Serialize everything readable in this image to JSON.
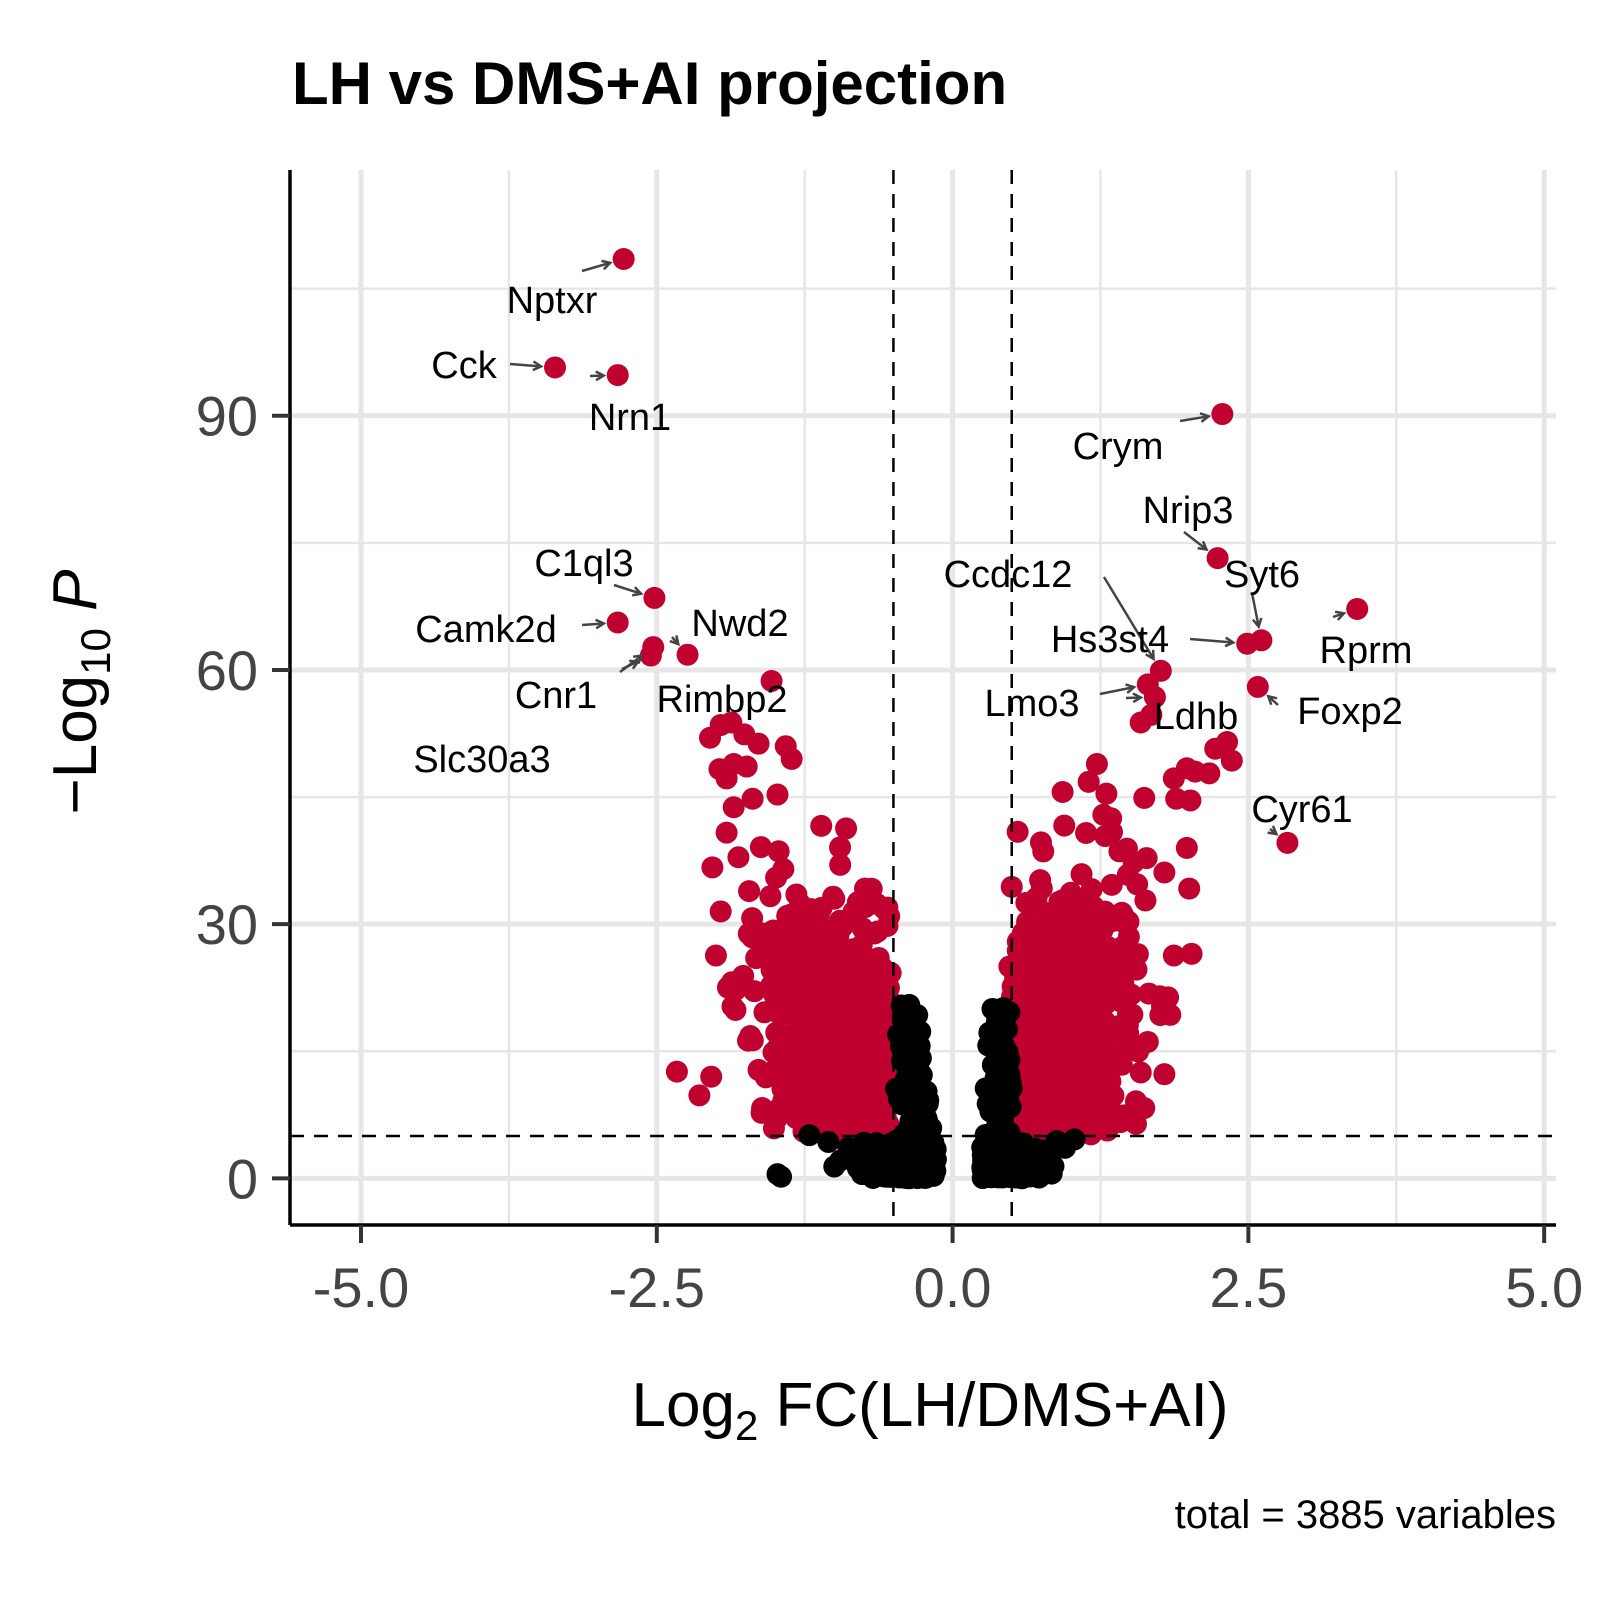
{
  "chart_data": {
    "type": "scatter",
    "title": "LH vs DMS+AI projection",
    "xlabel": {
      "prefix": "Log",
      "sub": "2",
      "suffix": " FC(LH/DMS+AI)"
    },
    "ylabel": {
      "prefix": "−Log",
      "sub": "10",
      "suffix": " P"
    },
    "caption": "total = 3885 variables",
    "xlim": [
      -5.6,
      5.1
    ],
    "ylim": [
      -5.5,
      119
    ],
    "xticks": [
      -5.0,
      -2.5,
      0.0,
      2.5,
      5.0
    ],
    "xtick_labels": [
      "-5.0",
      "-2.5",
      "0.0",
      "2.5",
      "5.0"
    ],
    "yticks": [
      0,
      30,
      60,
      90
    ],
    "ytick_labels": [
      "0",
      "30",
      "60",
      "90"
    ],
    "fc_cutoff": 0.5,
    "p_cutoff": 5,
    "grid": true,
    "legend": "none",
    "colors": {
      "significant": "#c0002e",
      "not_significant": "#000000",
      "grid": "#e6e6e6",
      "connector": "#444444"
    },
    "labeled_genes": [
      {
        "name": "Nptxr",
        "x": -2.78,
        "y": 108.5
      },
      {
        "name": "Cck",
        "x": -3.36,
        "y": 95.7
      },
      {
        "name": "Nrn1",
        "x": -2.83,
        "y": 94.8
      },
      {
        "name": "Crym",
        "x": 2.28,
        "y": 90.2
      },
      {
        "name": "Nrip3",
        "x": 2.24,
        "y": 73.2
      },
      {
        "name": "Syt6",
        "x": 2.61,
        "y": 63.5
      },
      {
        "name": "Rprm",
        "x": 3.42,
        "y": 67.2
      },
      {
        "name": "Ccdc12",
        "x": 1.76,
        "y": 59.9
      },
      {
        "name": "Hs3st4",
        "x": 2.49,
        "y": 63.1
      },
      {
        "name": "Lmo3",
        "x": 1.65,
        "y": 58.3
      },
      {
        "name": "Ldhb",
        "x": 1.71,
        "y": 56.8
      },
      {
        "name": "Foxp2",
        "x": 2.58,
        "y": 58.0
      },
      {
        "name": "Cyr61",
        "x": 2.83,
        "y": 39.6
      },
      {
        "name": "C1ql3",
        "x": -2.52,
        "y": 68.5
      },
      {
        "name": "Camk2d",
        "x": -2.83,
        "y": 65.6
      },
      {
        "name": "Nwd2",
        "x": -2.24,
        "y": 61.8
      },
      {
        "name": "Cnr1",
        "x": -2.53,
        "y": 62.7
      },
      {
        "name": "Slc30a3",
        "x": -2.55,
        "y": 61.7
      },
      {
        "name": "Rimbp2",
        "x": -1.53,
        "y": 58.7
      }
    ],
    "significant_points": [
      [
        -1.96,
        53.5
      ],
      [
        -2.05,
        52.0
      ],
      [
        -1.87,
        53.8
      ],
      [
        -1.76,
        52.4
      ],
      [
        -1.64,
        51.3
      ],
      [
        -1.41,
        51.0
      ],
      [
        -1.36,
        49.5
      ],
      [
        -1.97,
        48.3
      ],
      [
        -1.91,
        47.2
      ],
      [
        -1.85,
        48.9
      ],
      [
        -1.74,
        48.6
      ],
      [
        -1.48,
        45.3
      ],
      [
        -1.85,
        43.8
      ],
      [
        -1.69,
        44.8
      ],
      [
        -1.91,
        40.8
      ],
      [
        -2.03,
        36.7
      ],
      [
        -1.81,
        37.9
      ],
      [
        -1.62,
        39.1
      ],
      [
        -1.47,
        38.6
      ],
      [
        -1.43,
        36.5
      ],
      [
        -1.72,
        33.9
      ],
      [
        -1.54,
        33.3
      ],
      [
        -1.32,
        33.5
      ],
      [
        -1.11,
        41.6
      ],
      [
        -0.9,
        41.3
      ],
      [
        -0.95,
        37.0
      ],
      [
        -0.74,
        34.2
      ],
      [
        -0.8,
        32.6
      ],
      [
        -1.0,
        33.0
      ],
      [
        -0.55,
        29.8
      ],
      [
        -0.66,
        28.9
      ],
      [
        -0.76,
        29.5
      ],
      [
        -0.93,
        25.6
      ],
      [
        -1.96,
        31.5
      ],
      [
        -2.0,
        26.3
      ],
      [
        -1.66,
        26.0
      ],
      [
        -1.77,
        23.9
      ],
      [
        -1.53,
        24.6
      ],
      [
        -1.36,
        26.7
      ],
      [
        -1.23,
        25.2
      ],
      [
        -1.12,
        23.6
      ],
      [
        -1.86,
        20.3
      ],
      [
        -1.59,
        19.6
      ],
      [
        -1.71,
        16.8
      ],
      [
        -1.49,
        17.2
      ],
      [
        -1.33,
        19.4
      ],
      [
        -2.33,
        12.6
      ],
      [
        -2.14,
        9.8
      ],
      [
        -2.04,
        12.0
      ],
      [
        -1.64,
        12.8
      ],
      [
        -1.61,
        8.3
      ],
      [
        -1.51,
        5.9
      ],
      [
        -1.32,
        7.1
      ],
      [
        -1.21,
        5.4
      ],
      [
        -1.04,
        6.5
      ],
      [
        -0.89,
        5.8
      ],
      [
        1.15,
        46.8
      ],
      [
        1.22,
        48.9
      ],
      [
        1.3,
        45.4
      ],
      [
        1.34,
        42.5
      ],
      [
        1.29,
        40.4
      ],
      [
        1.41,
        38.6
      ],
      [
        1.53,
        37.3
      ],
      [
        1.64,
        37.8
      ],
      [
        1.79,
        36.1
      ],
      [
        1.98,
        39.0
      ],
      [
        2.0,
        34.2
      ],
      [
        1.89,
        44.8
      ],
      [
        2.01,
        44.6
      ],
      [
        1.87,
        47.2
      ],
      [
        1.98,
        48.4
      ],
      [
        2.05,
        48.0
      ],
      [
        2.17,
        47.8
      ],
      [
        2.22,
        50.7
      ],
      [
        2.32,
        51.5
      ],
      [
        2.36,
        49.3
      ],
      [
        1.62,
        44.9
      ],
      [
        1.68,
        54.7
      ],
      [
        1.59,
        53.8
      ],
      [
        0.93,
        45.6
      ],
      [
        1.09,
        35.9
      ],
      [
        0.55,
        40.9
      ],
      [
        0.74,
        35.2
      ],
      [
        0.5,
        34.4
      ],
      [
        0.71,
        33.1
      ],
      [
        0.91,
        29.8
      ],
      [
        1.27,
        29.4
      ],
      [
        1.49,
        28.5
      ],
      [
        1.63,
        32.8
      ],
      [
        1.56,
        34.7
      ],
      [
        1.45,
        30.2
      ],
      [
        1.51,
        21.7
      ],
      [
        1.42,
        20.9
      ],
      [
        1.65,
        16.1
      ],
      [
        1.75,
        21.5
      ],
      [
        1.87,
        26.3
      ],
      [
        1.77,
        20.3
      ],
      [
        2.02,
        26.5
      ],
      [
        1.84,
        19.3
      ],
      [
        1.79,
        12.3
      ],
      [
        1.55,
        9.1
      ],
      [
        1.62,
        8.3
      ],
      [
        0.48,
        25.0
      ],
      [
        0.55,
        22.6
      ],
      [
        1.17,
        5.2
      ],
      [
        0.86,
        8.6
      ],
      [
        1.07,
        7.9
      ],
      [
        0.63,
        10.5
      ],
      [
        0.73,
        12.2
      ],
      [
        0.68,
        14.6
      ],
      [
        0.59,
        17.2
      ]
    ],
    "nonsignificant_points": [
      [
        -1.45,
        0.2
      ],
      [
        -1.48,
        0.5
      ],
      [
        -1.21,
        5.1
      ],
      [
        -1.05,
        4.3
      ],
      [
        -0.95,
        2.1
      ],
      [
        -0.88,
        3.6
      ],
      [
        -0.8,
        1.2
      ],
      [
        -0.75,
        4.2
      ],
      [
        -0.7,
        0.4
      ],
      [
        -0.66,
        2.8
      ],
      [
        -0.61,
        3.9
      ],
      [
        -0.56,
        1.7
      ],
      [
        -0.52,
        0.6
      ],
      [
        -0.48,
        4.4
      ],
      [
        -0.45,
        2.2
      ],
      [
        -0.42,
        14.9
      ],
      [
        -0.4,
        13.6
      ],
      [
        -0.38,
        9.8
      ],
      [
        -0.36,
        6.4
      ],
      [
        -0.34,
        3.1
      ],
      [
        -0.31,
        0.9
      ],
      [
        -0.29,
        11.6
      ],
      [
        -0.27,
        7.7
      ],
      [
        -0.25,
        4.6
      ],
      [
        -0.23,
        1.8
      ],
      [
        -0.21,
        8.8
      ],
      [
        -0.19,
        5.6
      ],
      [
        -0.17,
        2.4
      ],
      [
        -0.16,
        0.3
      ],
      [
        -0.43,
        20.4
      ],
      [
        -0.46,
        17.0
      ],
      [
        -0.26,
        12.2
      ],
      [
        -0.37,
        0.1
      ],
      [
        -0.3,
        6.1
      ],
      [
        -0.22,
        3.3
      ],
      [
        -0.55,
        0.2
      ],
      [
        -0.63,
        0.9
      ],
      [
        -0.72,
        2.6
      ],
      [
        -0.83,
        3.4
      ],
      [
        -1.0,
        1.4
      ],
      [
        -0.49,
        2.9
      ],
      [
        -0.41,
        5.2
      ],
      [
        -0.33,
        9.1
      ],
      [
        -0.28,
        0.6
      ],
      [
        -0.2,
        1.1
      ],
      [
        0.26,
        0.3
      ],
      [
        0.28,
        2.5
      ],
      [
        0.3,
        5.1
      ],
      [
        0.32,
        7.9
      ],
      [
        0.34,
        10.5
      ],
      [
        0.36,
        1.3
      ],
      [
        0.38,
        3.8
      ],
      [
        0.4,
        12.6
      ],
      [
        0.42,
        6.7
      ],
      [
        0.44,
        14.3
      ],
      [
        0.46,
        17.6
      ],
      [
        0.48,
        19.6
      ],
      [
        0.43,
        20.1
      ],
      [
        0.39,
        15.8
      ],
      [
        0.35,
        9.2
      ],
      [
        0.31,
        4.3
      ],
      [
        0.27,
        1.7
      ],
      [
        0.33,
        0.2
      ],
      [
        0.37,
        6.0
      ],
      [
        0.41,
        2.2
      ],
      [
        0.45,
        8.7
      ],
      [
        0.49,
        11.4
      ],
      [
        0.29,
        0.8
      ],
      [
        0.47,
        3.2
      ],
      [
        0.52,
        4.1
      ],
      [
        0.56,
        0.5
      ],
      [
        0.6,
        2.7
      ],
      [
        0.65,
        1.1
      ],
      [
        0.7,
        3.5
      ],
      [
        0.76,
        0.7
      ],
      [
        0.82,
        2.9
      ],
      [
        0.88,
        4.4
      ],
      [
        0.95,
        3.6
      ],
      [
        1.03,
        4.6
      ],
      [
        0.73,
        0.1
      ]
    ],
    "density_clouds": [
      {
        "center": [
          -0.82,
          14.5
        ],
        "spread": [
          0.3,
          7.5
        ],
        "count": 400,
        "clip": {
          "xmax": -0.5,
          "ymin": 5
        }
      },
      {
        "center": [
          -1.25,
          22.0
        ],
        "spread": [
          0.28,
          6.0
        ],
        "count": 130,
        "clip": {
          "xmax": -0.5,
          "ymin": 5
        }
      },
      {
        "center": [
          0.82,
          15.0
        ],
        "spread": [
          0.28,
          8.0
        ],
        "count": 420,
        "clip": {
          "xmin": 0.5,
          "ymin": 5
        }
      },
      {
        "center": [
          1.05,
          24.0
        ],
        "spread": [
          0.26,
          6.5
        ],
        "count": 160,
        "clip": {
          "xmin": 0.5,
          "ymin": 5
        }
      }
    ],
    "nonsig_clouds": [
      {
        "center": [
          -0.3,
          1.6
        ],
        "spread": [
          0.14,
          1.4
        ],
        "count": 280,
        "clip": {
          "xmin": -0.9,
          "xmax": -0.14,
          "ymin": 0,
          "ymax": 5
        }
      },
      {
        "center": [
          0.4,
          1.8
        ],
        "spread": [
          0.16,
          1.5
        ],
        "count": 300,
        "clip": {
          "xmin": 0.25,
          "xmax": 1.05,
          "ymin": 0,
          "ymax": 5
        }
      },
      {
        "center": [
          -0.33,
          9.0
        ],
        "spread": [
          0.06,
          5.0
        ],
        "count": 70,
        "clip": {
          "xmin": -0.5,
          "xmax": -0.14,
          "ymin": 5,
          "ymax": 22
        }
      },
      {
        "center": [
          0.4,
          10.0
        ],
        "spread": [
          0.06,
          5.5
        ],
        "count": 70,
        "clip": {
          "xmin": 0.25,
          "xmax": 0.5,
          "ymin": 5,
          "ymax": 22
        }
      }
    ]
  }
}
